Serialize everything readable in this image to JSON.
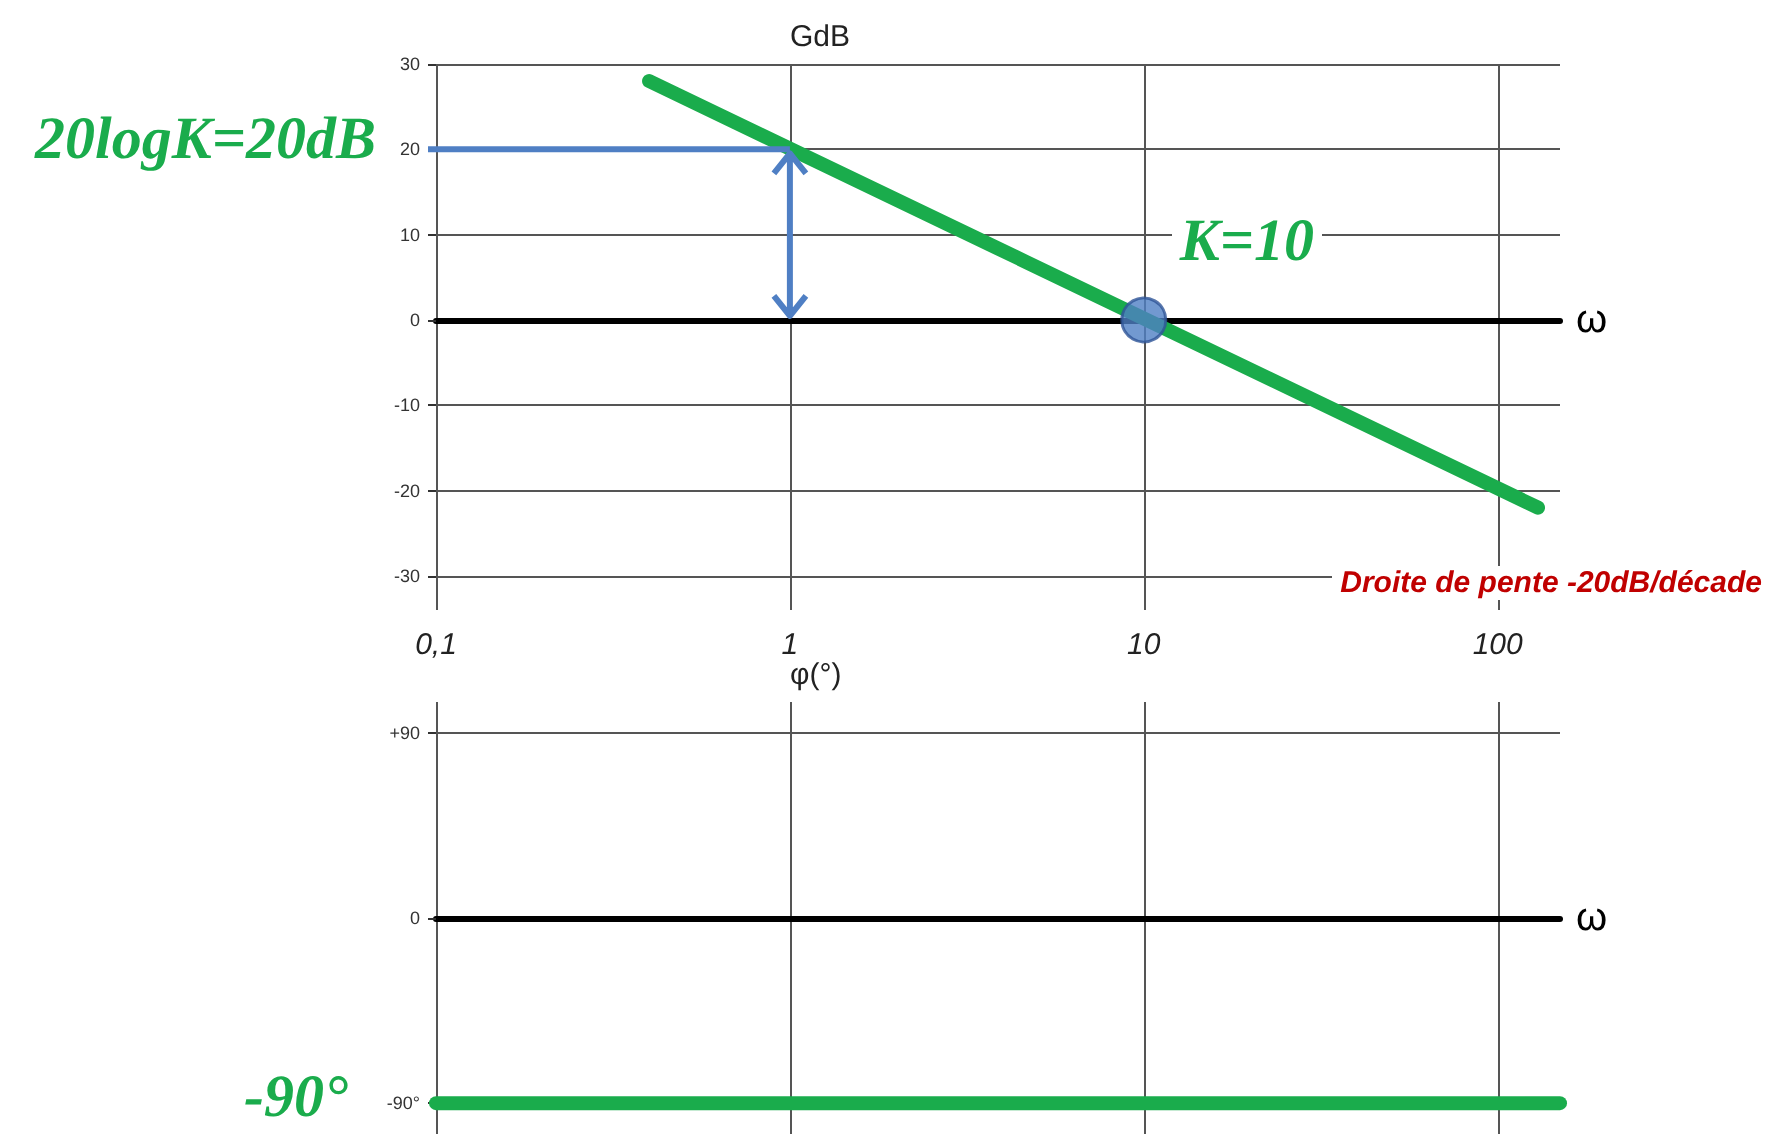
{
  "chart_data": [
    {
      "type": "line",
      "xlabel": "ω",
      "ylabel": "GdB",
      "log": "x",
      "xlim": [
        0.1,
        150
      ],
      "xticks": [
        {
          "value": 0.1,
          "label": "0,1"
        },
        1,
        10,
        100
      ],
      "ylim": [
        -34,
        30
      ],
      "yticks": [
        -30,
        -20,
        -10,
        0,
        10,
        20,
        30
      ],
      "grid": true,
      "series": [
        {
          "color": "#1aac4c",
          "marker": "none",
          "x": [
            0.4,
            130
          ],
          "values": [
            28,
            -22
          ]
        },
        {
          "type": "scatter",
          "color": "#4f7fc4",
          "marker": "circle",
          "x": [
            10
          ],
          "values": [
            0
          ]
        }
      ],
      "annotations": [
        {
          "text": "20logK=20dB",
          "x": 1,
          "y": 20
        },
        {
          "text": "K=10",
          "x": 10,
          "y": 0
        },
        "Droite de pente -20dB/décade"
      ]
    },
    {
      "type": "line",
      "xlabel": "ω",
      "ylabel": "φ(°)",
      "log": "x",
      "xlim": [
        0.1,
        150
      ],
      "xticks": [
        0.1,
        1,
        10,
        100
      ],
      "ylim": [
        -105,
        105
      ],
      "yticks": [
        {
          "value": 90,
          "label": "+90"
        },
        0,
        {
          "value": -90,
          "label": "-90°"
        }
      ],
      "tick_labels": "y",
      "grid": true,
      "series": [
        {
          "color": "#1aac4c",
          "marker": "none",
          "x": [
            0.1,
            150
          ],
          "values": [
            -90,
            -90
          ]
        }
      ],
      "annotations": [
        {
          "text": "-90°",
          "x": 0.1,
          "y": -90
        }
      ]
    }
  ]
}
